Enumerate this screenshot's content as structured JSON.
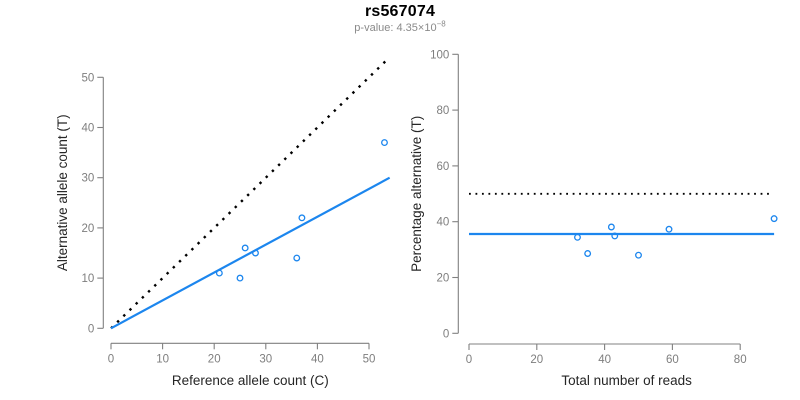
{
  "header": {
    "title": "rs567074",
    "subtitle_prefix": "p-value: 4.35×10",
    "subtitle_exponent": "−8"
  },
  "colors": {
    "point_blue": "#1C86EE",
    "fit_line_blue": "#1C86EE",
    "reference_line_black": "#000000",
    "axis_gray": "#808080",
    "tick_label_gray": "#7E7E7E",
    "axis_title_color": "#262626",
    "title_color": "#000000",
    "subtitle_gray": "#8A8A8A"
  },
  "chart_data": [
    {
      "id": "allele-counts-scatter",
      "type": "scatter",
      "title": "",
      "xlabel": "Reference allele count (C)",
      "ylabel": "Alternative allele count (T)",
      "xlim": [
        0,
        54
      ],
      "ylim": [
        0,
        54
      ],
      "xticks": [
        0,
        10,
        20,
        30,
        40,
        50
      ],
      "yticks": [
        0,
        10,
        20,
        30,
        40,
        50
      ],
      "grid": false,
      "legend": null,
      "points": [
        [
          21,
          11
        ],
        [
          25,
          10
        ],
        [
          26,
          16
        ],
        [
          28,
          15
        ],
        [
          36,
          14
        ],
        [
          37,
          22
        ],
        [
          53,
          37
        ]
      ],
      "lines": [
        {
          "name": "identity-50pct-line",
          "style": "dotted",
          "color": "#000000",
          "width": 2.4,
          "from": [
            0,
            0
          ],
          "to": [
            54,
            54
          ]
        },
        {
          "name": "fitted-proportion-line",
          "style": "solid",
          "color": "#1C86EE",
          "width": 2.2,
          "from": [
            0,
            0
          ],
          "to": [
            54,
            30
          ]
        }
      ]
    },
    {
      "id": "percentage-vs-reads-scatter",
      "type": "scatter",
      "title": "",
      "xlabel": "Total number of reads",
      "ylabel": "Percentage alternative (T)",
      "xlim": [
        0,
        93
      ],
      "ylim": [
        0,
        100
      ],
      "xticks": [
        0,
        20,
        40,
        60,
        80
      ],
      "yticks": [
        0,
        20,
        40,
        60,
        80,
        100
      ],
      "grid": false,
      "legend": null,
      "points": [
        [
          32,
          34.4
        ],
        [
          35,
          28.6
        ],
        [
          42,
          38.1
        ],
        [
          43,
          34.9
        ],
        [
          50,
          28
        ],
        [
          59,
          37.3
        ],
        [
          90,
          41.1
        ]
      ],
      "lines": [
        {
          "name": "null-50pct-line",
          "style": "dotted",
          "color": "#000000",
          "width": 1.8,
          "from": [
            0,
            50
          ],
          "to": [
            89,
            50
          ]
        },
        {
          "name": "mean-percentage-line",
          "style": "solid",
          "color": "#1C86EE",
          "width": 2.2,
          "from": [
            0,
            35.6
          ],
          "to": [
            90,
            35.6
          ]
        }
      ]
    }
  ]
}
